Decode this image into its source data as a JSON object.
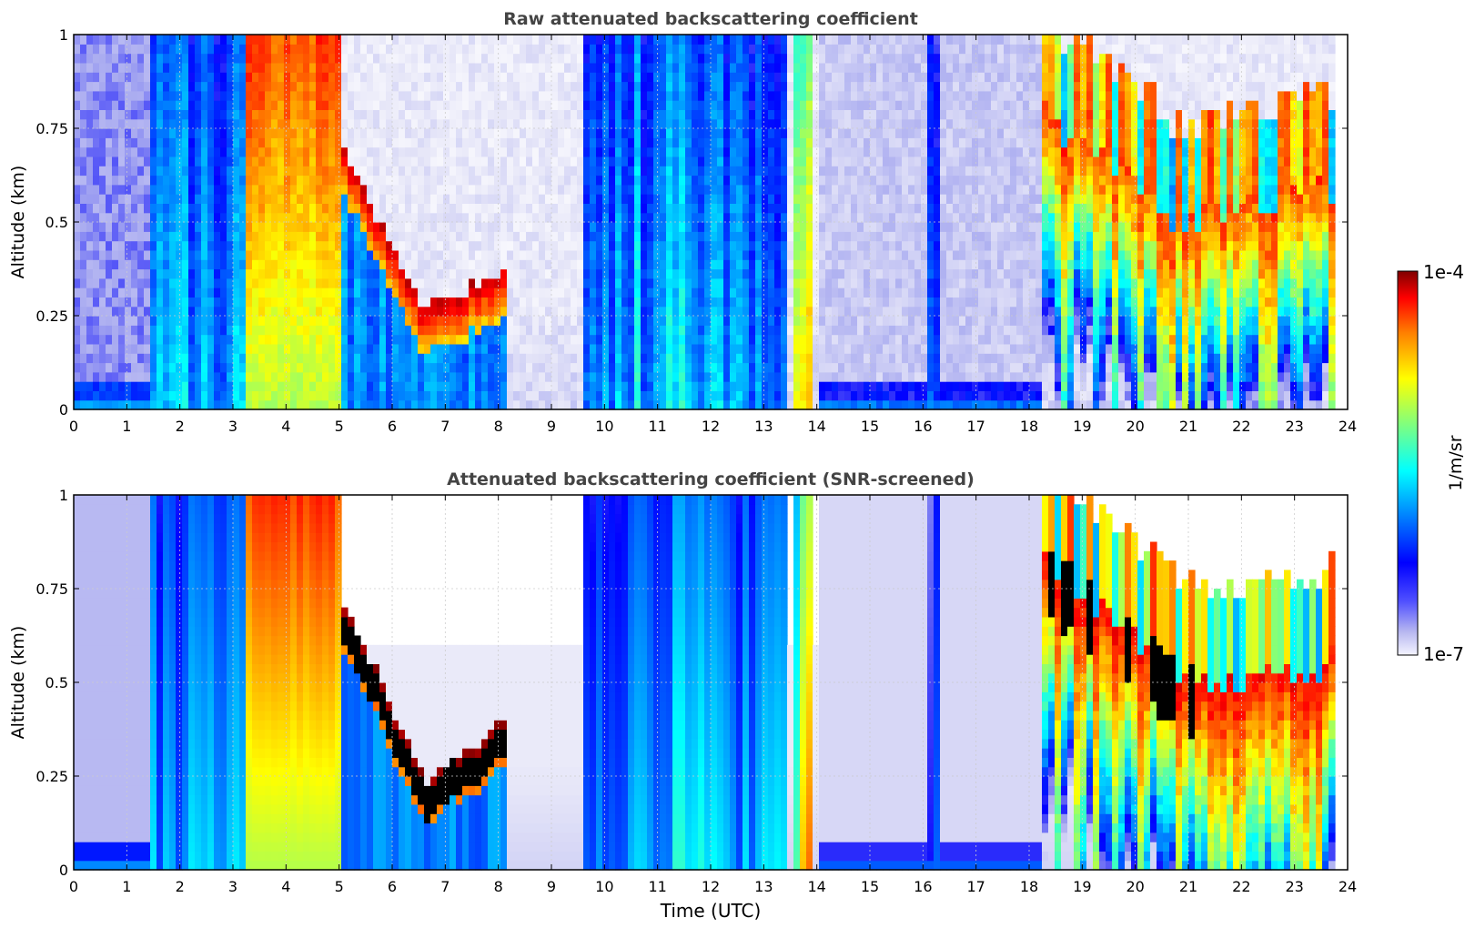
{
  "chart_data": [
    {
      "type": "heatmap",
      "title": "Raw attenuated backscattering coefficient",
      "xlabel": "",
      "ylabel": "Altitude (km)",
      "xlim": [
        0,
        24
      ],
      "ylim": [
        0,
        1
      ],
      "xticks": [
        "0",
        "1",
        "2",
        "3",
        "4",
        "5",
        "6",
        "7",
        "8",
        "9",
        "10",
        "11",
        "12",
        "13",
        "14",
        "15",
        "16",
        "17",
        "18",
        "19",
        "20",
        "21",
        "22",
        "23",
        "24"
      ],
      "yticks": [
        "0",
        "0.25",
        "0.5",
        "0.75",
        "1"
      ],
      "grid": true,
      "screened": false,
      "features": [
        {
          "name": "clear-sky",
          "x": [
            0,
            1.5
          ],
          "level": 0.15
        },
        {
          "name": "column",
          "x": [
            1.5,
            3.3
          ],
          "level": 0.45
        },
        {
          "name": "fog",
          "x": [
            3.3,
            5.0
          ],
          "level": 0.78
        },
        {
          "name": "descending-layer",
          "x": [
            5.0,
            8.2
          ],
          "y_top": [
            0.72,
            0.26,
            0.38
          ],
          "level": 0.95
        },
        {
          "name": "column",
          "x": [
            9.6,
            13.4
          ],
          "level": 0.5
        },
        {
          "name": "column",
          "x": [
            13.6,
            13.9
          ],
          "level": 0.85
        },
        {
          "name": "clear-sky",
          "x": [
            14.0,
            18.2
          ],
          "level": 0.1
        },
        {
          "name": "column",
          "x": [
            16.1,
            16.3
          ],
          "level": 0.35
        },
        {
          "name": "boundary-layer",
          "x": [
            18.2,
            23.8
          ],
          "y_top": [
            0.8,
            0.5,
            0.6
          ],
          "level": 0.8
        }
      ]
    },
    {
      "type": "heatmap",
      "title": "Attenuated backscattering coefficient (SNR-screened)",
      "xlabel": "Time (UTC)",
      "ylabel": "Altitude (km)",
      "xlim": [
        0,
        24
      ],
      "ylim": [
        0,
        1
      ],
      "xticks": [
        "0",
        "1",
        "2",
        "3",
        "4",
        "5",
        "6",
        "7",
        "8",
        "9",
        "10",
        "11",
        "12",
        "13",
        "14",
        "15",
        "16",
        "17",
        "18",
        "19",
        "20",
        "21",
        "22",
        "23",
        "24"
      ],
      "yticks": [
        "0",
        "0.25",
        "0.5",
        "0.75",
        "1"
      ],
      "grid": true,
      "screened": true,
      "features": [
        {
          "name": "clear-sky",
          "x": [
            0,
            1.5
          ],
          "level": 0.12
        },
        {
          "name": "column",
          "x": [
            1.5,
            3.3
          ],
          "level": 0.45
        },
        {
          "name": "fog",
          "x": [
            3.3,
            5.0
          ],
          "level": 0.78
        },
        {
          "name": "descending-layer",
          "x": [
            5.0,
            8.2
          ],
          "y_top": [
            0.75,
            0.24,
            0.4
          ],
          "level": 1.0,
          "saturated": true
        },
        {
          "name": "column",
          "x": [
            9.6,
            13.4
          ],
          "level": 0.5
        },
        {
          "name": "column",
          "x": [
            13.6,
            13.9
          ],
          "level": 0.85
        },
        {
          "name": "clear-sky",
          "x": [
            14.0,
            18.2
          ],
          "level": 0.08
        },
        {
          "name": "column",
          "x": [
            16.1,
            16.3
          ],
          "level": 0.35
        },
        {
          "name": "boundary-layer",
          "x": [
            18.2,
            23.8
          ],
          "y_top": [
            0.85,
            0.5,
            0.55
          ],
          "level": 0.85,
          "saturated": true
        }
      ]
    }
  ],
  "colorbar": {
    "label": "1/m/sr",
    "max_label": "1e-4",
    "min_label": "1e-7",
    "colormap": "jet",
    "scale": "log"
  },
  "colors": {
    "jet_stops": [
      "#00007f",
      "#0000ff",
      "#007fff",
      "#00ffff",
      "#7fff7f",
      "#ffff00",
      "#ff7f00",
      "#ff0000",
      "#7f0000"
    ],
    "low_end": "#e6e6f8",
    "low_mid": "#a8aaf0",
    "saturated": "#000000",
    "axis": "#000000",
    "title": "#444444",
    "grid": "#cccccc"
  }
}
